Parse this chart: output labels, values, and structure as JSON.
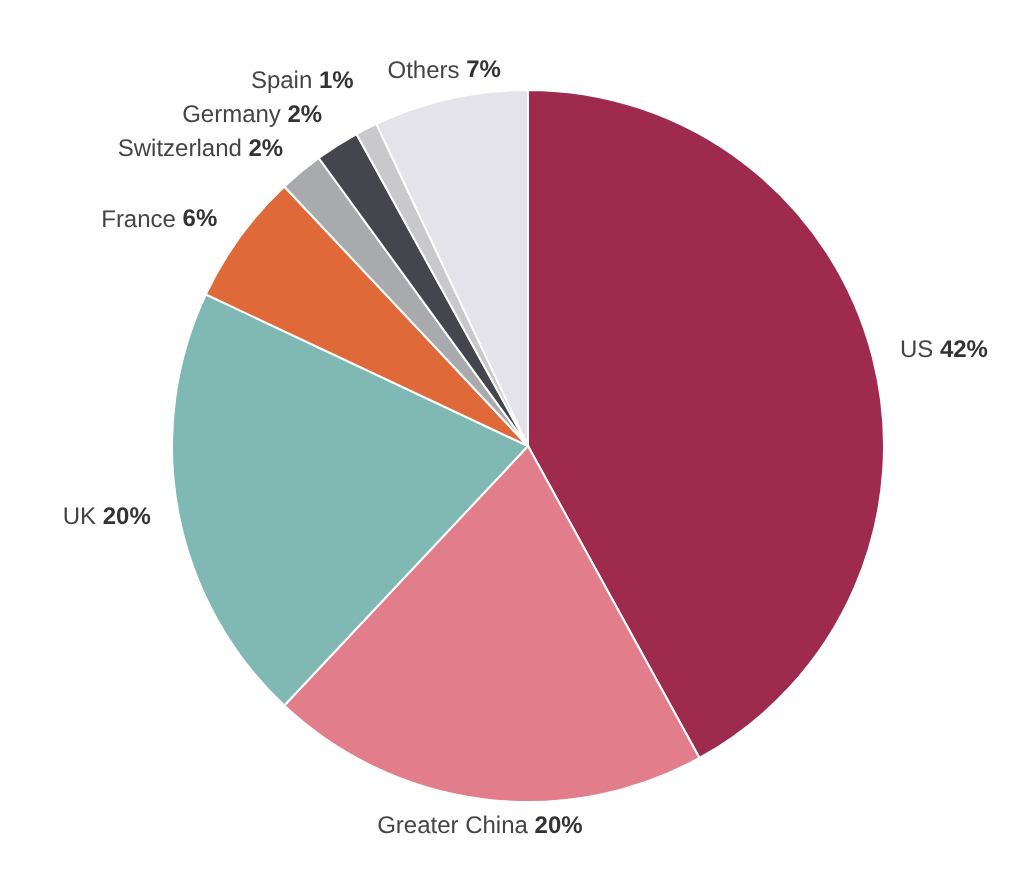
{
  "chart_data": {
    "type": "pie",
    "categories": [
      "US",
      "Greater China",
      "UK",
      "France",
      "Switzerland",
      "Germany",
      "Spain",
      "Others"
    ],
    "values": [
      42,
      20,
      20,
      6,
      2,
      2,
      1,
      7
    ],
    "value_labels": [
      "42%",
      "20%",
      "20%",
      "6%",
      "2%",
      "2%",
      "1%",
      "7%"
    ],
    "colors": [
      "#9e2a4e",
      "#e27d8b",
      "#80b9b4",
      "#e0693a",
      "#a9aaae",
      "#45454d",
      "#c9c9cd",
      "#e3e3e9"
    ]
  }
}
